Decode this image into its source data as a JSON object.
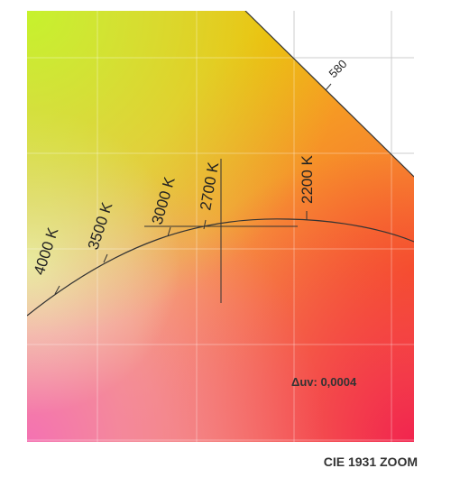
{
  "chart_data": {
    "type": "line",
    "title": "CIE 1931 ZOOM",
    "annotation": "Δuv: 0,0004",
    "planckian_locus_ticks": [
      "4000 K",
      "3500 K",
      "3000 K",
      "2700 K",
      "2200 K"
    ],
    "spectral_locus_label": "580",
    "grid": true,
    "colors": {
      "top_left": "#c8f02a",
      "top_right": "#f5a800",
      "center": "#f6c26a",
      "bottom_left": "#f06ca0",
      "bottom_right": "#f22a4a",
      "line": "#333333"
    }
  }
}
